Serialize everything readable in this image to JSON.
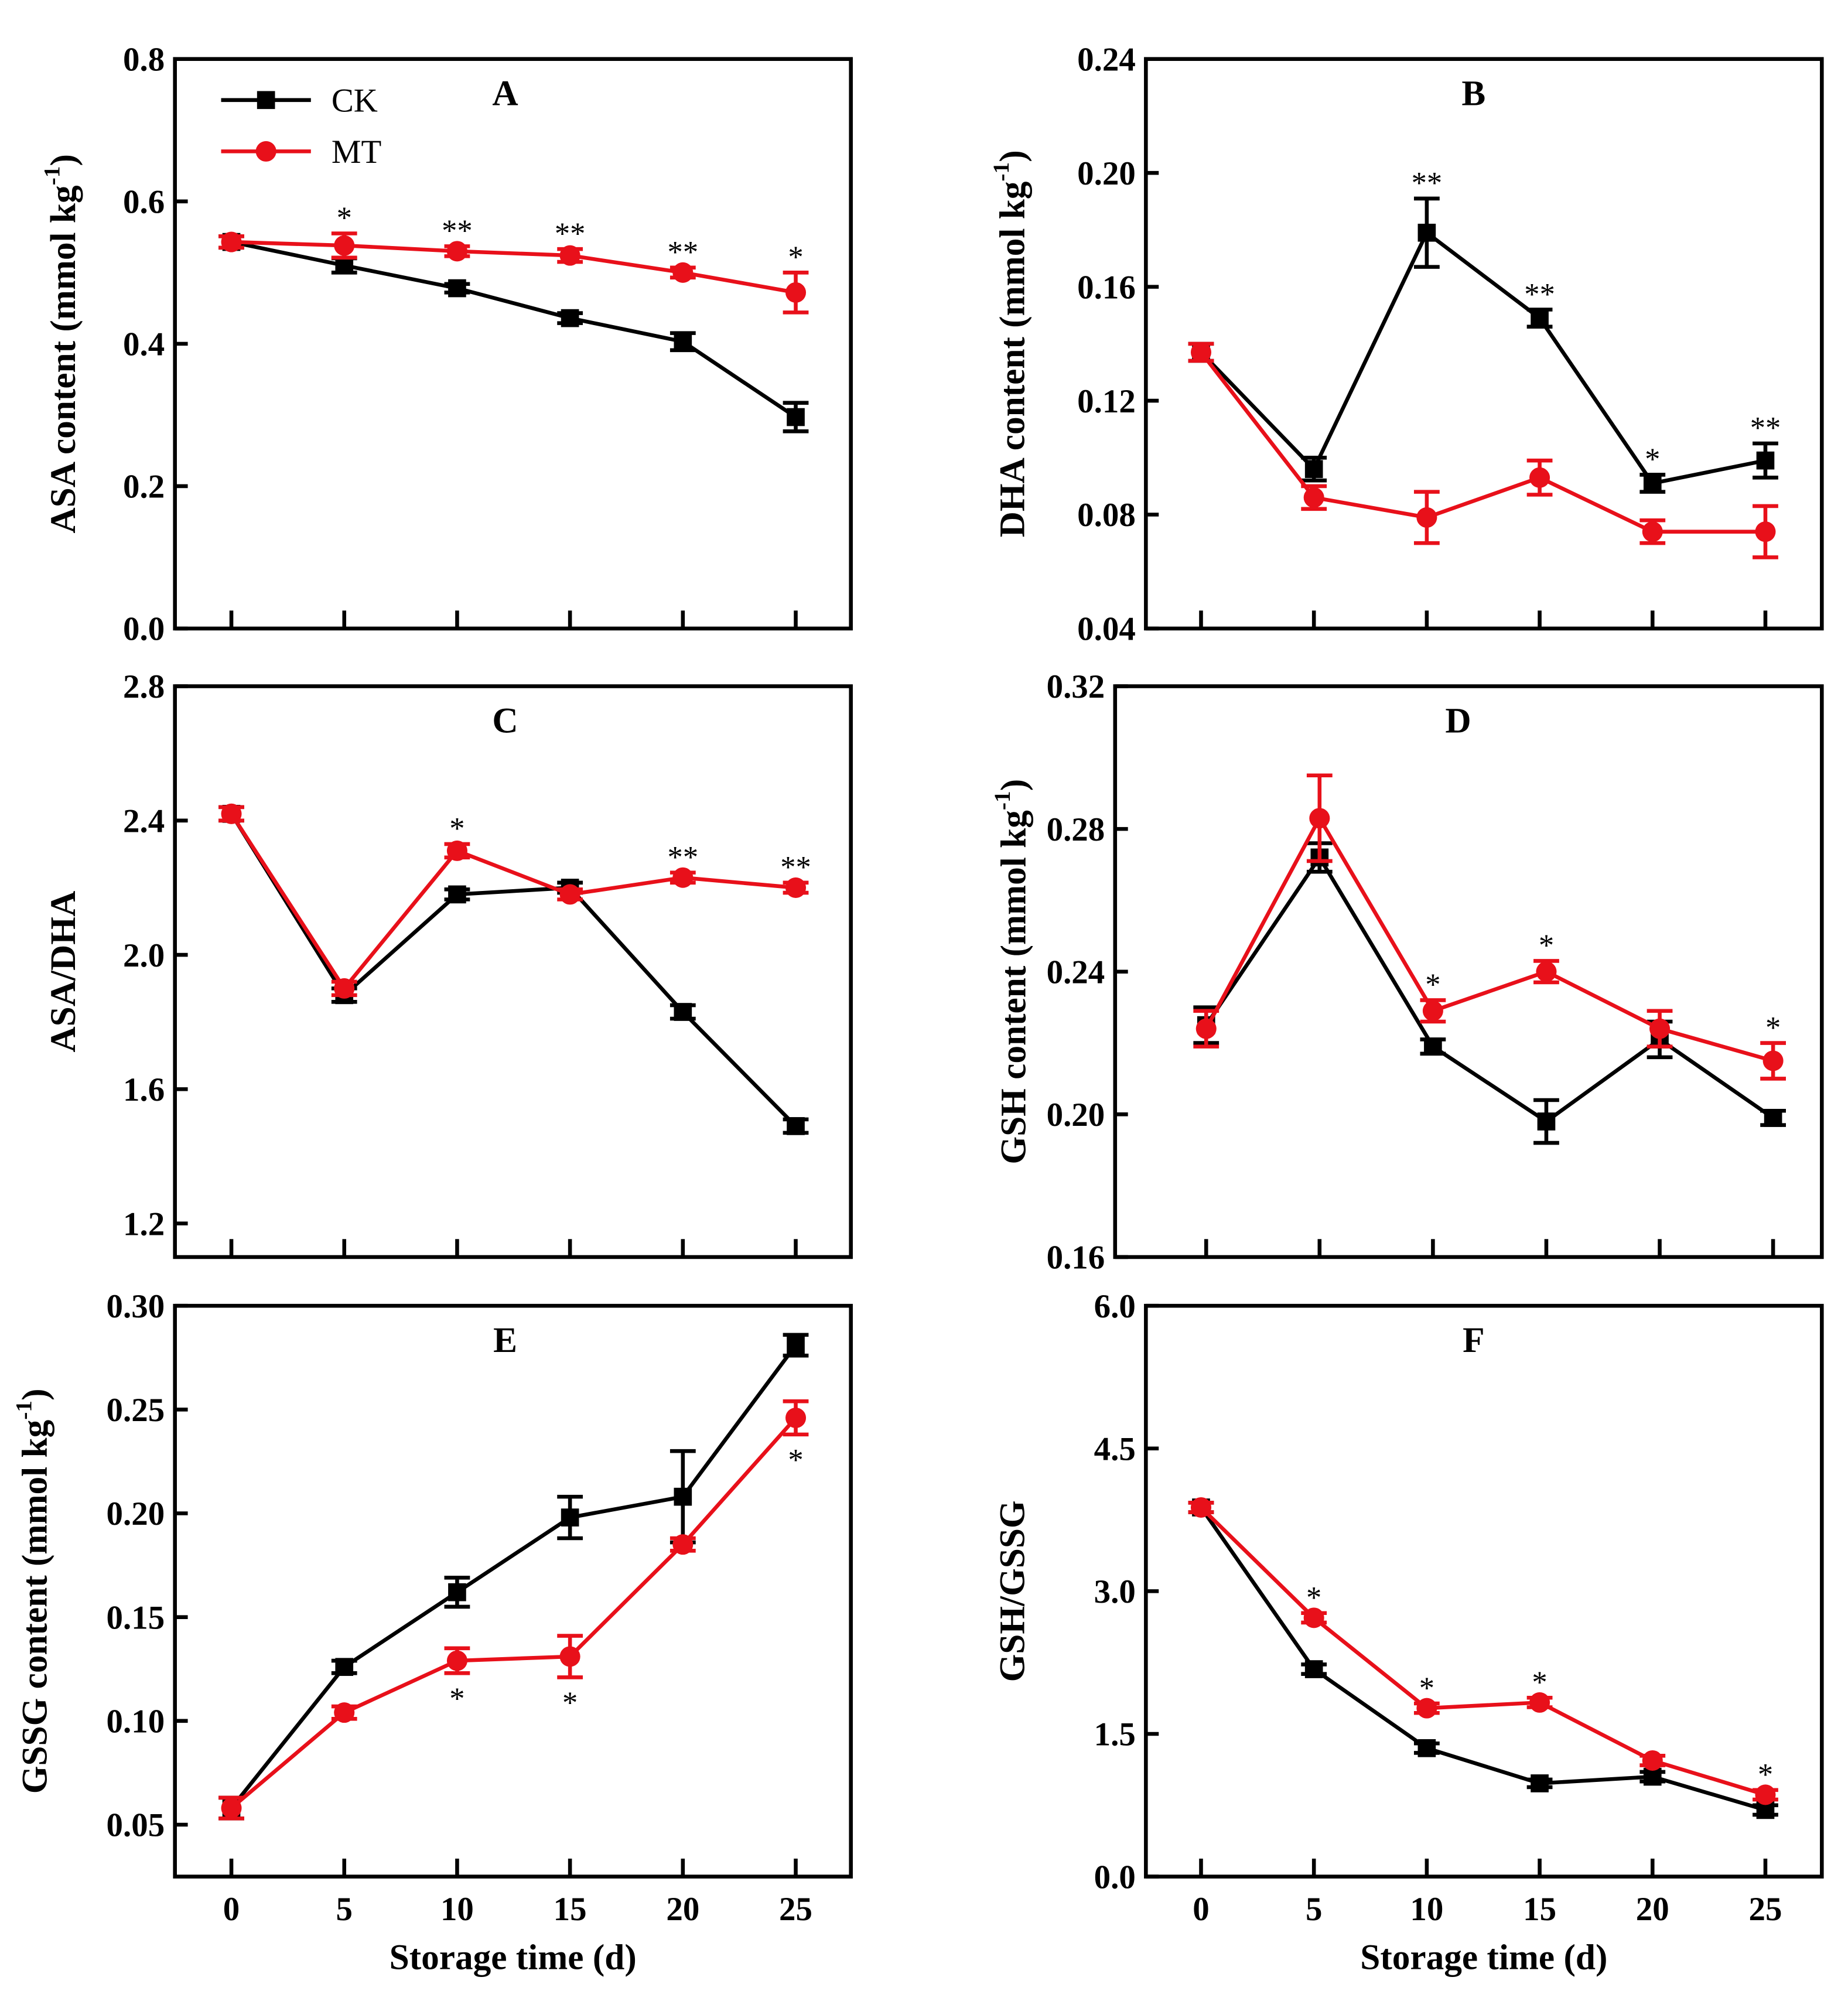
{
  "chart_data": [
    {
      "type": "line",
      "panel": "A",
      "title": "A",
      "ylabel": "ASA content (mmol kg",
      "ylabel_sup": "-1",
      "ylabel_close": ")",
      "xlabel": "",
      "x": [
        0,
        5,
        10,
        15,
        20,
        25
      ],
      "ylim": [
        0,
        0.8
      ],
      "yticks": [
        0.0,
        0.2,
        0.4,
        0.6,
        0.8
      ],
      "ytick_labels": [
        "0.0",
        "0.2",
        "0.4",
        "0.6",
        "0.8"
      ],
      "show_xticklabels": false,
      "legend": {
        "position": "top-left",
        "entries": [
          "CK",
          "MT"
        ]
      },
      "series": [
        {
          "name": "CK",
          "values": [
            0.543,
            0.51,
            0.478,
            0.436,
            0.403,
            0.297
          ],
          "errors": [
            0.008,
            0.01,
            0.006,
            0.007,
            0.012,
            0.02
          ]
        },
        {
          "name": "MT",
          "values": [
            0.543,
            0.538,
            0.53,
            0.524,
            0.5,
            0.472
          ],
          "errors": [
            0.008,
            0.017,
            0.007,
            0.009,
            0.007,
            0.028
          ]
        }
      ],
      "stars": [
        "",
        "*",
        "**",
        "**",
        "**",
        "*"
      ],
      "star_pos": "above"
    },
    {
      "type": "line",
      "panel": "B",
      "title": "B",
      "ylabel": "DHA content (mmol kg",
      "ylabel_sup": "-1",
      "ylabel_close": ")",
      "xlabel": "",
      "x": [
        0,
        5,
        10,
        15,
        20,
        25
      ],
      "ylim": [
        0.04,
        0.24
      ],
      "yticks": [
        0.04,
        0.08,
        0.12,
        0.16,
        0.2,
        0.24
      ],
      "ytick_labels": [
        "0.04",
        "0.08",
        "0.12",
        "0.16",
        "0.20",
        "0.24"
      ],
      "show_xticklabels": false,
      "series": [
        {
          "name": "CK",
          "values": [
            0.137,
            0.096,
            0.179,
            0.149,
            0.091,
            0.099
          ],
          "errors": [
            0.003,
            0.004,
            0.012,
            0.003,
            0.003,
            0.006
          ]
        },
        {
          "name": "MT",
          "values": [
            0.137,
            0.086,
            0.079,
            0.093,
            0.074,
            0.074
          ],
          "errors": [
            0.003,
            0.004,
            0.009,
            0.006,
            0.004,
            0.009
          ]
        }
      ],
      "stars": [
        "",
        "",
        "**",
        "**",
        "*",
        "**"
      ],
      "star_pos": "above"
    },
    {
      "type": "line",
      "panel": "C",
      "title": "C",
      "ylabel": "ASA/DHA",
      "xlabel": "",
      "x": [
        0,
        5,
        10,
        15,
        20,
        25
      ],
      "ylim": [
        1.1,
        2.8
      ],
      "yticks": [
        1.2,
        1.6,
        2.0,
        2.4,
        2.8
      ],
      "ytick_labels": [
        "1.2",
        "1.6",
        "2.0",
        "2.4",
        "2.8"
      ],
      "show_xticklabels": false,
      "series": [
        {
          "name": "CK",
          "values": [
            2.42,
            1.88,
            2.18,
            2.2,
            1.83,
            1.49
          ],
          "errors": [
            0.02,
            0.02,
            0.015,
            0.015,
            0.02,
            0.02
          ]
        },
        {
          "name": "MT",
          "values": [
            2.42,
            1.9,
            2.31,
            2.18,
            2.23,
            2.2
          ],
          "errors": [
            0.02,
            0.02,
            0.02,
            0.015,
            0.015,
            0.015
          ]
        }
      ],
      "stars": [
        "",
        "",
        "*",
        "",
        "**",
        "**"
      ],
      "star_pos": "above"
    },
    {
      "type": "line",
      "panel": "D",
      "title": "D",
      "ylabel": "GSH content (mmol kg",
      "ylabel_sup": "-1",
      "ylabel_close": ")",
      "xlabel": "",
      "x": [
        0,
        5,
        10,
        15,
        20,
        25
      ],
      "ylim": [
        0.16,
        0.32
      ],
      "yticks": [
        0.16,
        0.2,
        0.24,
        0.28,
        0.32
      ],
      "ytick_labels": [
        "0.16",
        "0.20",
        "0.24",
        "0.28",
        "0.32"
      ],
      "show_xticklabels": false,
      "series": [
        {
          "name": "CK",
          "values": [
            0.225,
            0.272,
            0.219,
            0.198,
            0.221,
            0.199
          ],
          "errors": [
            0.005,
            0.004,
            0.002,
            0.006,
            0.005,
            0.002
          ]
        },
        {
          "name": "MT",
          "values": [
            0.224,
            0.283,
            0.229,
            0.24,
            0.224,
            0.215
          ],
          "errors": [
            0.005,
            0.012,
            0.003,
            0.003,
            0.005,
            0.005
          ]
        }
      ],
      "stars": [
        "",
        "",
        "*",
        "*",
        "",
        "*"
      ],
      "star_pos": "above"
    },
    {
      "type": "line",
      "panel": "E",
      "title": "E",
      "ylabel": "GSSG content (mmol kg",
      "ylabel_sup": "-1",
      "ylabel_close": ")",
      "xlabel": "Storage time (d)",
      "x": [
        0,
        5,
        10,
        15,
        20,
        25
      ],
      "ylim": [
        0.025,
        0.3
      ],
      "yticks": [
        0.05,
        0.1,
        0.15,
        0.2,
        0.25,
        0.3
      ],
      "ytick_labels": [
        "0.05",
        "0.10",
        "0.15",
        "0.20",
        "0.25",
        "0.30"
      ],
      "show_xticklabels": true,
      "xtick_labels": [
        "0",
        "5",
        "10",
        "15",
        "20",
        "25"
      ],
      "series": [
        {
          "name": "CK",
          "values": [
            0.058,
            0.126,
            0.162,
            0.198,
            0.208,
            0.281
          ],
          "errors": [
            0.005,
            0.003,
            0.007,
            0.01,
            0.022,
            0.005
          ]
        },
        {
          "name": "MT",
          "values": [
            0.058,
            0.104,
            0.129,
            0.131,
            0.185,
            0.246
          ],
          "errors": [
            0.005,
            0.003,
            0.006,
            0.01,
            0.003,
            0.008
          ]
        }
      ],
      "stars": [
        "",
        "",
        "*",
        "*",
        "",
        "*"
      ],
      "star_pos": "below"
    },
    {
      "type": "line",
      "panel": "F",
      "title": "F",
      "ylabel": "GSH/GSSG",
      "xlabel": "Storage time (d)",
      "x": [
        0,
        5,
        10,
        15,
        20,
        25
      ],
      "ylim": [
        0,
        6.0
      ],
      "yticks": [
        0.0,
        1.5,
        3.0,
        4.5,
        6.0
      ],
      "ytick_labels": [
        "0.0",
        "1.5",
        "3.0",
        "4.5",
        "6.0"
      ],
      "show_xticklabels": true,
      "xtick_labels": [
        "0",
        "5",
        "10",
        "15",
        "20",
        "25"
      ],
      "series": [
        {
          "name": "CK",
          "values": [
            3.88,
            2.18,
            1.35,
            0.98,
            1.05,
            0.7
          ],
          "errors": [
            0.05,
            0.05,
            0.05,
            0.04,
            0.05,
            0.05
          ]
        },
        {
          "name": "MT",
          "values": [
            3.88,
            2.72,
            1.77,
            1.83,
            1.22,
            0.86
          ],
          "errors": [
            0.05,
            0.05,
            0.05,
            0.05,
            0.05,
            0.05
          ]
        }
      ],
      "stars": [
        "",
        "*",
        "*",
        "*",
        "",
        "*"
      ],
      "star_pos": "above"
    }
  ],
  "colors": {
    "CK": "#000000",
    "MT": "#e8101a"
  }
}
